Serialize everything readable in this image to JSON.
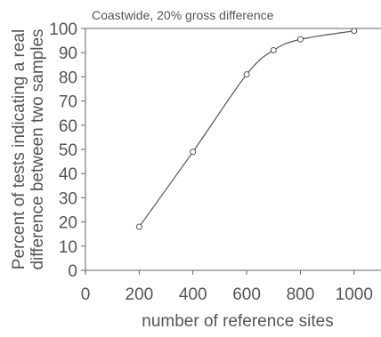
{
  "chart_data": {
    "type": "line",
    "annotation": "Coastwide, 20% gross difference",
    "xlabel": "number of reference sites",
    "ylabel": [
      "Percent of tests indicating a real",
      "difference between two samples"
    ],
    "xlim": [
      0,
      1100
    ],
    "ylim": [
      0,
      100
    ],
    "xticks": [
      "0",
      "200",
      "400",
      "600",
      "800",
      "1000"
    ],
    "yticks": [
      "0",
      "10",
      "20",
      "30",
      "40",
      "50",
      "60",
      "70",
      "80",
      "90",
      "100"
    ],
    "grid": false,
    "series": [
      {
        "x": [
          200,
          400,
          600,
          700,
          800,
          1000
        ],
        "y": [
          18,
          49,
          81,
          91,
          95.5,
          99
        ]
      }
    ],
    "reference_line_y": 100,
    "colors": {
      "line": "#555555",
      "axis": "#666666",
      "text": "#555555",
      "background": "#ffffff"
    }
  }
}
